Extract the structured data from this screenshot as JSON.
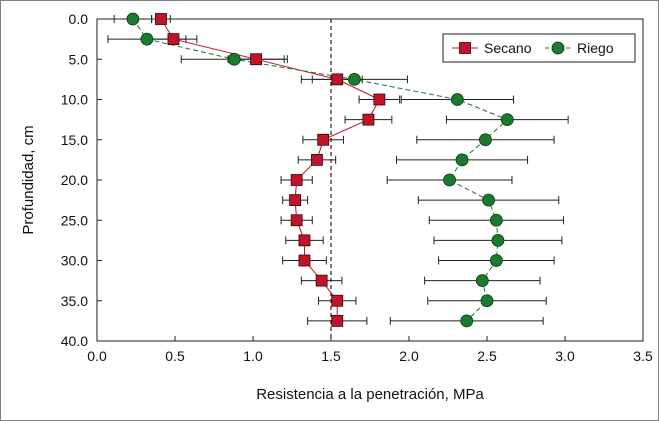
{
  "chart_data": {
    "type": "scatter",
    "xlabel": "Resistencia a la penetración, MPa",
    "ylabel": "Profundidad, cm",
    "xlim": [
      0.0,
      3.5
    ],
    "ylim": [
      0.0,
      40.0
    ],
    "y_inverted": true,
    "x_ticks": [
      "0.0",
      "0.5",
      "1.0",
      "1.5",
      "2.0",
      "2.5",
      "3.0",
      "3.5"
    ],
    "y_ticks": [
      "0.0",
      "5.0",
      "10.0",
      "15.0",
      "20.0",
      "25.0",
      "30.0",
      "35.0",
      "40.0"
    ],
    "reference_line_x": 1.5,
    "legend_position": "top-right",
    "series": [
      {
        "name": "Secano",
        "color": "#c0142a",
        "marker": "square",
        "line": "solid",
        "points": [
          {
            "x": 0.41,
            "y": 0.0,
            "xerr": 0.06
          },
          {
            "x": 0.49,
            "y": 2.5,
            "xerr": 0.15
          },
          {
            "x": 1.02,
            "y": 5.0,
            "xerr": 0.18
          },
          {
            "x": 1.54,
            "y": 7.5,
            "xerr": 0.16
          },
          {
            "x": 1.81,
            "y": 10.0,
            "xerr": 0.13
          },
          {
            "x": 1.74,
            "y": 12.5,
            "xerr": 0.15
          },
          {
            "x": 1.45,
            "y": 15.0,
            "xerr": 0.13
          },
          {
            "x": 1.41,
            "y": 17.5,
            "xerr": 0.12
          },
          {
            "x": 1.28,
            "y": 20.0,
            "xerr": 0.1
          },
          {
            "x": 1.27,
            "y": 22.5,
            "xerr": 0.08
          },
          {
            "x": 1.28,
            "y": 25.0,
            "xerr": 0.1
          },
          {
            "x": 1.33,
            "y": 27.5,
            "xerr": 0.12
          },
          {
            "x": 1.33,
            "y": 30.0,
            "xerr": 0.14
          },
          {
            "x": 1.44,
            "y": 32.5,
            "xerr": 0.13
          },
          {
            "x": 1.54,
            "y": 35.0,
            "xerr": 0.12
          },
          {
            "x": 1.54,
            "y": 37.5,
            "xerr": 0.19
          }
        ]
      },
      {
        "name": "Riego",
        "color": "#1a7a2e",
        "marker": "circle",
        "line": "dashed",
        "points": [
          {
            "x": 0.23,
            "y": 0.0,
            "xerr": 0.12
          },
          {
            "x": 0.32,
            "y": 2.5,
            "xerr": 0.25
          },
          {
            "x": 0.88,
            "y": 5.0,
            "xerr": 0.34
          },
          {
            "x": 1.65,
            "y": 7.5,
            "xerr": 0.34
          },
          {
            "x": 2.31,
            "y": 10.0,
            "xerr": 0.36
          },
          {
            "x": 2.63,
            "y": 12.5,
            "xerr": 0.39
          },
          {
            "x": 2.49,
            "y": 15.0,
            "xerr": 0.44
          },
          {
            "x": 2.34,
            "y": 17.5,
            "xerr": 0.42
          },
          {
            "x": 2.26,
            "y": 20.0,
            "xerr": 0.4
          },
          {
            "x": 2.51,
            "y": 22.5,
            "xerr": 0.45
          },
          {
            "x": 2.56,
            "y": 25.0,
            "xerr": 0.43
          },
          {
            "x": 2.57,
            "y": 27.5,
            "xerr": 0.41
          },
          {
            "x": 2.56,
            "y": 30.0,
            "xerr": 0.37
          },
          {
            "x": 2.47,
            "y": 32.5,
            "xerr": 0.37
          },
          {
            "x": 2.5,
            "y": 35.0,
            "xerr": 0.38
          },
          {
            "x": 2.37,
            "y": 37.5,
            "xerr": 0.49
          }
        ]
      }
    ]
  }
}
